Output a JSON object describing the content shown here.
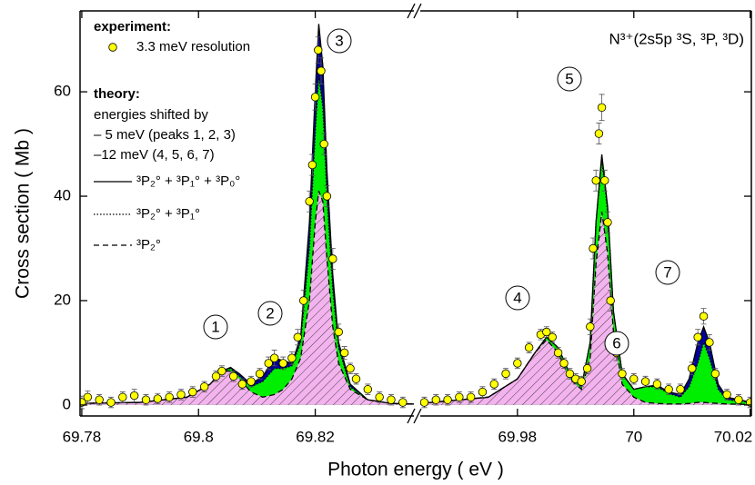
{
  "chart_data": [
    {
      "type": "line",
      "xlabel": "Photon energy  ( eV )",
      "ylabel": "Cross section  ( Mb )",
      "xlim": [
        69.7797,
        69.8369
      ],
      "xticks": [
        69.78,
        69.8,
        69.82
      ],
      "ylim": [
        -2.1,
        75.5
      ],
      "yticks": [
        0,
        20,
        40,
        60
      ],
      "legend_heads": [
        "experiment:",
        "theory:"
      ],
      "theory_notes": [
        "energies shifted by",
        "– 5 meV (peaks 1, 2, 3)",
        "–12 meV (4, 5, 6, 7)"
      ],
      "peak_labels": [
        "1",
        "2",
        "3"
      ],
      "series": [
        {
          "name": "³P₂° + ³P₁° + ³P₀°",
          "style": "solid",
          "color": "#000000",
          "fill": "#000099",
          "x": [
            69.7797,
            69.79,
            69.798,
            69.802,
            69.804,
            69.8055,
            69.807,
            69.809,
            69.811,
            69.813,
            69.8145,
            69.816,
            69.8175,
            69.819,
            69.82,
            69.8206,
            69.8213,
            69.822,
            69.823,
            69.824,
            69.826,
            69.829,
            69.833,
            69.8369
          ],
          "values": [
            0.3,
            0.5,
            1.5,
            4,
            6.5,
            7.2,
            6,
            4,
            5.5,
            9,
            8.5,
            8,
            13,
            35,
            60,
            73,
            65,
            45,
            25,
            12,
            4,
            1,
            0.3,
            0.2
          ]
        },
        {
          "name": "³P₂° + ³P₁°",
          "style": "dotted",
          "color": "#000000",
          "fill": "#00ee00",
          "x": [
            69.7797,
            69.79,
            69.798,
            69.802,
            69.804,
            69.8055,
            69.807,
            69.809,
            69.811,
            69.813,
            69.8145,
            69.816,
            69.8175,
            69.819,
            69.82,
            69.8206,
            69.8213,
            69.822,
            69.823,
            69.824,
            69.826,
            69.829,
            69.833,
            69.8369
          ],
          "values": [
            0.3,
            0.5,
            1.5,
            4,
            6.5,
            7,
            5.5,
            3.5,
            4.5,
            7,
            7,
            7.5,
            12,
            30,
            52,
            63,
            57,
            40,
            22,
            11,
            3.5,
            1,
            0.3,
            0.2
          ]
        },
        {
          "name": "³P₂°",
          "style": "dashed",
          "color": "#000000",
          "fill": "#f3b3ee",
          "hatch": true,
          "x": [
            69.7797,
            69.79,
            69.798,
            69.802,
            69.804,
            69.8055,
            69.807,
            69.809,
            69.811,
            69.813,
            69.8145,
            69.816,
            69.8175,
            69.819,
            69.82,
            69.8206,
            69.8213,
            69.822,
            69.823,
            69.824,
            69.826,
            69.829,
            69.833,
            69.8369
          ],
          "values": [
            0.3,
            0.5,
            1.5,
            4,
            6.5,
            6.5,
            5,
            2.5,
            1.5,
            2,
            3,
            5,
            9,
            20,
            35,
            41,
            39,
            28,
            15,
            8,
            3,
            1,
            0.3,
            0.2
          ]
        },
        {
          "name": "3.3 meV resolution",
          "style": "markers",
          "color": "#ffff00",
          "x": [
            69.78,
            69.781,
            69.783,
            69.785,
            69.787,
            69.789,
            69.791,
            69.793,
            69.795,
            69.797,
            69.799,
            69.801,
            69.803,
            69.804,
            69.806,
            69.8075,
            69.809,
            69.8105,
            69.812,
            69.813,
            69.8145,
            69.816,
            69.817,
            69.818,
            69.819,
            69.8195,
            69.82,
            69.8205,
            69.821,
            69.8215,
            69.822,
            69.823,
            69.824,
            69.825,
            69.826,
            69.827,
            69.829,
            69.831,
            69.833,
            69.835
          ],
          "values": [
            0.5,
            1.5,
            1,
            0.5,
            1.5,
            1.8,
            1,
            1.2,
            1.5,
            2,
            2.5,
            3.5,
            5.5,
            6.5,
            5.5,
            4,
            4.5,
            6,
            8,
            9,
            8,
            9,
            13,
            20,
            39,
            46,
            59,
            68,
            64,
            50,
            40,
            28,
            14,
            10,
            7,
            5,
            3,
            1.5,
            1,
            0.5
          ],
          "errors": [
            1.2,
            1.2,
            1,
            1,
            1,
            1.2,
            1,
            1,
            1,
            1,
            1,
            1,
            1,
            1,
            1,
            1,
            1,
            1,
            1.2,
            1.5,
            1.2,
            1.2,
            1.5,
            2,
            2,
            2,
            2.5,
            2.5,
            2.5,
            2,
            2,
            2,
            1.5,
            1.2,
            1,
            1,
            1,
            1,
            1,
            1
          ]
        }
      ]
    },
    {
      "type": "line",
      "title": "N³⁺(2s5p ³S, ³P, ³D)",
      "xlim": [
        69.9633,
        70.0202
      ],
      "xticks": [
        69.98,
        70.0,
        70.02
      ],
      "peak_labels": [
        "4",
        "5",
        "6",
        "7"
      ],
      "series": [
        {
          "style": "solid",
          "color": "#000000",
          "fill": "#000099",
          "x": [
            69.9633,
            69.975,
            69.98,
            69.983,
            69.985,
            69.987,
            69.989,
            69.991,
            69.9925,
            69.9935,
            69.9945,
            69.9955,
            69.9965,
            69.998,
            70.0,
            70.002,
            70.004,
            70.006,
            70.008,
            70.0095,
            70.011,
            70.012,
            70.013,
            70.0145,
            70.016,
            70.0202
          ],
          "values": [
            0.3,
            1.5,
            5,
            10,
            13,
            11,
            6,
            3.5,
            12,
            35,
            48,
            38,
            18,
            6,
            3,
            3.5,
            3.8,
            2.5,
            2,
            5,
            12,
            15,
            12,
            4,
            1.5,
            0.5
          ]
        },
        {
          "style": "dotted",
          "color": "#000000",
          "fill": "#00ee00",
          "x": [
            69.9633,
            69.975,
            69.98,
            69.983,
            69.985,
            69.987,
            69.989,
            69.991,
            69.9925,
            69.9935,
            69.9945,
            69.9955,
            69.9965,
            69.998,
            70.0,
            70.002,
            70.004,
            70.006,
            70.008,
            70.0095,
            70.011,
            70.012,
            70.013,
            70.0145,
            70.016,
            70.0202
          ],
          "values": [
            0.3,
            1.5,
            5,
            10,
            13,
            11,
            6,
            3.5,
            12,
            35,
            47,
            37,
            18,
            6,
            3,
            3.5,
            3.5,
            2.2,
            1.5,
            3.5,
            8,
            12,
            9,
            3,
            1,
            0.5
          ]
        },
        {
          "style": "dashed",
          "color": "#000000",
          "fill": "#f3b3ee",
          "hatch": true,
          "x": [
            69.9633,
            69.975,
            69.98,
            69.983,
            69.985,
            69.987,
            69.989,
            69.991,
            69.9925,
            69.9935,
            69.9945,
            69.9955,
            69.9965,
            69.998,
            70.0,
            70.002,
            70.004,
            70.006,
            70.008,
            70.0095,
            70.011,
            70.012,
            70.013,
            70.0145,
            70.016,
            70.0202
          ],
          "values": [
            0.3,
            1.5,
            5,
            10,
            12.5,
            10,
            5,
            3,
            9,
            27,
            37,
            29,
            14,
            4,
            1.5,
            0.5,
            0.3,
            0.2,
            0.2,
            0.3,
            0.5,
            0.5,
            0.4,
            0.3,
            0.2,
            0.1
          ]
        },
        {
          "style": "markers",
          "color": "#ffff00",
          "x": [
            69.964,
            69.966,
            69.968,
            69.97,
            69.972,
            69.974,
            69.976,
            69.978,
            69.98,
            69.982,
            69.984,
            69.985,
            69.986,
            69.987,
            69.988,
            69.989,
            69.99,
            69.991,
            69.992,
            69.9925,
            69.993,
            69.9935,
            69.994,
            69.9945,
            69.995,
            69.9955,
            69.996,
            69.997,
            69.998,
            70.0,
            70.002,
            70.004,
            70.006,
            70.008,
            70.01,
            70.011,
            70.012,
            70.013,
            70.014,
            70.016,
            70.018,
            70.02
          ],
          "values": [
            0.5,
            1,
            1,
            1.5,
            1.5,
            2.5,
            4,
            6,
            8,
            11,
            13.5,
            14,
            13,
            10,
            8,
            6,
            5,
            4.5,
            7,
            15,
            30,
            43,
            52,
            57,
            43,
            35,
            20,
            10,
            6,
            5,
            4.5,
            4,
            3,
            3,
            7,
            13,
            17,
            12,
            6,
            2,
            1,
            0.5
          ],
          "errors": [
            1,
            1,
            1,
            1,
            1,
            1,
            1,
            1,
            1,
            1,
            1,
            1,
            1,
            1,
            1,
            1,
            1,
            1,
            1,
            1.5,
            2,
            2,
            2,
            2.5,
            2,
            2,
            2,
            1.5,
            1,
            1,
            1,
            1,
            1,
            1,
            1.2,
            1.5,
            1.5,
            1.5,
            1,
            1,
            1,
            1
          ]
        }
      ]
    }
  ]
}
